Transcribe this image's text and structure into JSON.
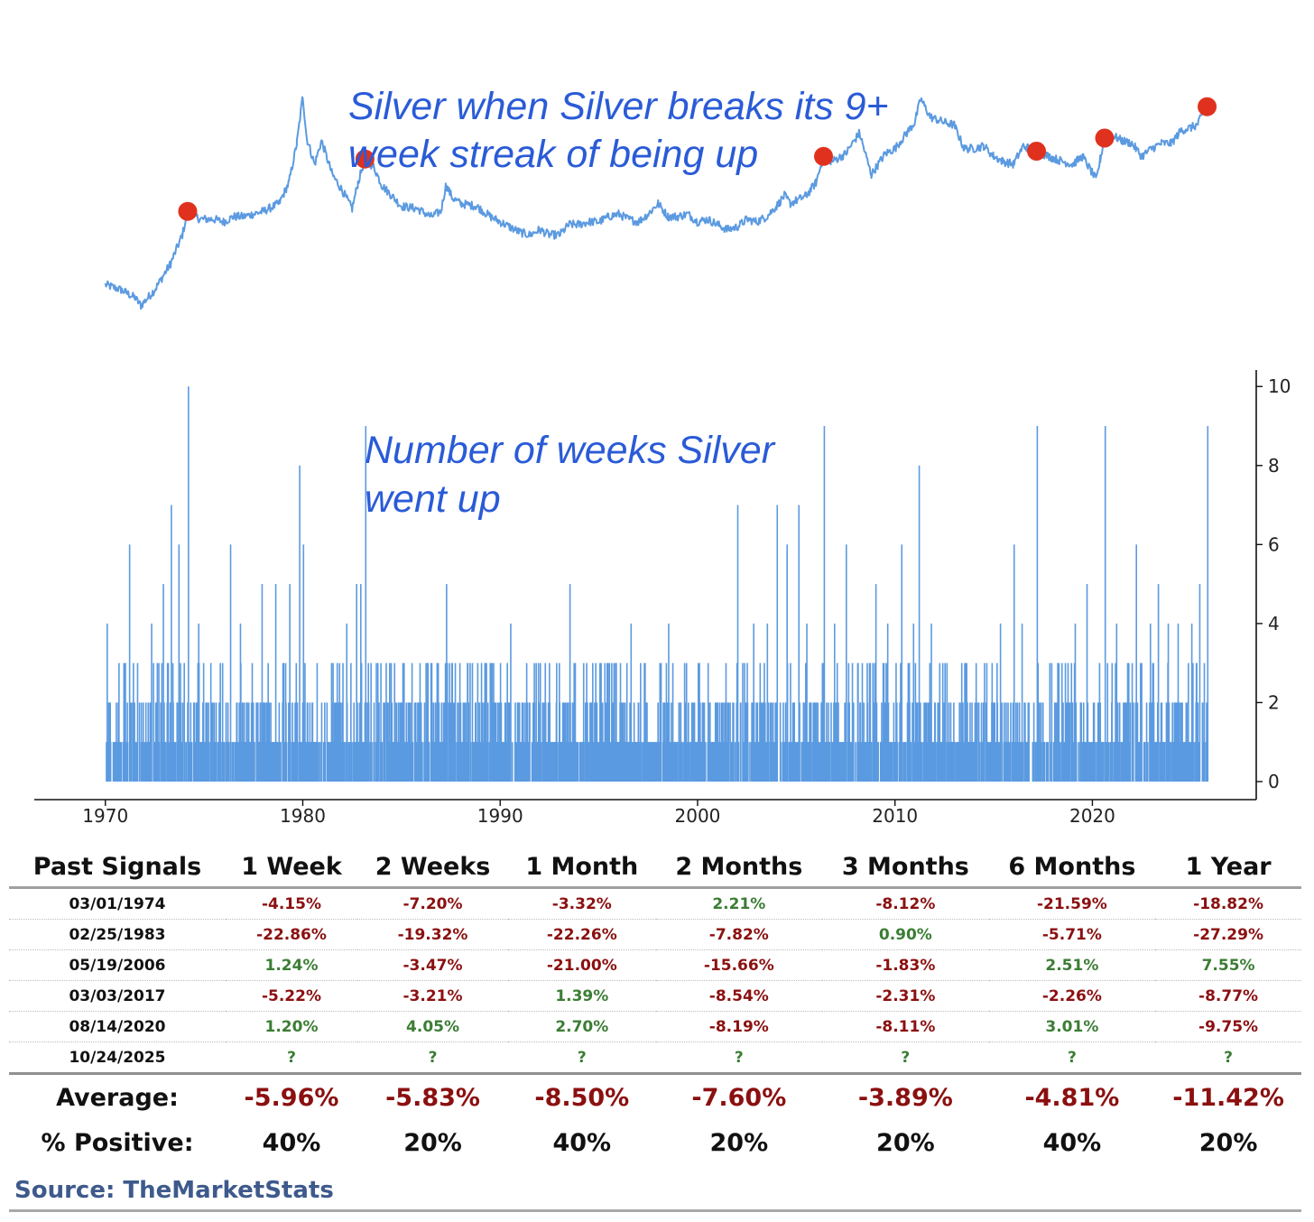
{
  "chart_data": [
    {
      "type": "line",
      "title": "Silver when Silver breaks its 9+ week streak of being up",
      "title_lines": [
        "Silver when Silver breaks its 9+",
        "week streak of being up"
      ],
      "series": [
        {
          "name": "Silver price (relative, log-style)",
          "points": [
            [
              1970.0,
              24
            ],
            [
              1970.8,
              22
            ],
            [
              1971.5,
              19
            ],
            [
              1971.8,
              16
            ],
            [
              1972.5,
              22
            ],
            [
              1973.3,
              32
            ],
            [
              1973.9,
              43
            ],
            [
              1974.17,
              52
            ],
            [
              1974.8,
              49
            ],
            [
              1975.5,
              49
            ],
            [
              1976.0,
              48
            ],
            [
              1976.5,
              50
            ],
            [
              1977.0,
              50
            ],
            [
              1977.5,
              51
            ],
            [
              1978.0,
              52
            ],
            [
              1978.8,
              55
            ],
            [
              1979.3,
              63
            ],
            [
              1979.7,
              78
            ],
            [
              1980.0,
              96
            ],
            [
              1980.2,
              80
            ],
            [
              1980.6,
              70
            ],
            [
              1980.95,
              79
            ],
            [
              1981.5,
              66
            ],
            [
              1982.0,
              60
            ],
            [
              1982.5,
              53
            ],
            [
              1982.8,
              63
            ],
            [
              1983.15,
              72
            ],
            [
              1983.6,
              69
            ],
            [
              1984.0,
              62
            ],
            [
              1984.5,
              58
            ],
            [
              1985.0,
              54
            ],
            [
              1985.8,
              53
            ],
            [
              1986.5,
              50
            ],
            [
              1987.0,
              52
            ],
            [
              1987.25,
              62
            ],
            [
              1987.6,
              57
            ],
            [
              1988.0,
              55
            ],
            [
              1988.8,
              54
            ],
            [
              1989.5,
              50
            ],
            [
              1990.0,
              48
            ],
            [
              1990.5,
              46
            ],
            [
              1991.0,
              44
            ],
            [
              1991.5,
              43
            ],
            [
              1992.0,
              45
            ],
            [
              1992.5,
              43
            ],
            [
              1993.0,
              43
            ],
            [
              1993.5,
              47
            ],
            [
              1994.0,
              47
            ],
            [
              1994.5,
              48
            ],
            [
              1995.0,
              48
            ],
            [
              1995.5,
              50
            ],
            [
              1996.0,
              51
            ],
            [
              1996.5,
              49
            ],
            [
              1997.0,
              48
            ],
            [
              1997.5,
              51
            ],
            [
              1998.0,
              55
            ],
            [
              1998.5,
              50
            ],
            [
              1999.0,
              50
            ],
            [
              1999.5,
              51
            ],
            [
              2000.0,
              48
            ],
            [
              2000.5,
              49
            ],
            [
              2001.0,
              47
            ],
            [
              2001.5,
              45
            ],
            [
              2002.0,
              46
            ],
            [
              2002.5,
              49
            ],
            [
              2003.0,
              48
            ],
            [
              2003.5,
              50
            ],
            [
              2004.0,
              54
            ],
            [
              2004.4,
              58
            ],
            [
              2004.7,
              55
            ],
            [
              2005.5,
              58
            ],
            [
              2006.0,
              63
            ],
            [
              2006.38,
              73
            ],
            [
              2006.8,
              71
            ],
            [
              2007.5,
              74
            ],
            [
              2008.2,
              82
            ],
            [
              2008.8,
              66
            ],
            [
              2009.5,
              74
            ],
            [
              2010.0,
              76
            ],
            [
              2010.6,
              82
            ],
            [
              2011.0,
              86
            ],
            [
              2011.3,
              95
            ],
            [
              2011.8,
              88
            ],
            [
              2012.5,
              86
            ],
            [
              2013.0,
              85
            ],
            [
              2013.5,
              76
            ],
            [
              2014.0,
              76
            ],
            [
              2014.5,
              77
            ],
            [
              2015.0,
              73
            ],
            [
              2015.5,
              71
            ],
            [
              2016.0,
              70
            ],
            [
              2016.5,
              77
            ],
            [
              2017.17,
              75
            ],
            [
              2017.8,
              73
            ],
            [
              2018.5,
              71
            ],
            [
              2019.0,
              70
            ],
            [
              2019.5,
              73
            ],
            [
              2020.2,
              64
            ],
            [
              2020.4,
              72
            ],
            [
              2020.62,
              80
            ],
            [
              2021.0,
              81
            ],
            [
              2021.5,
              79
            ],
            [
              2022.0,
              78
            ],
            [
              2022.5,
              73
            ],
            [
              2023.0,
              76
            ],
            [
              2023.5,
              78
            ],
            [
              2024.0,
              78
            ],
            [
              2024.5,
              83
            ],
            [
              2025.0,
              84
            ],
            [
              2025.3,
              85
            ],
            [
              2025.81,
              92
            ]
          ]
        }
      ],
      "signals": [
        {
          "date": "03/01/1974",
          "x": 1974.17
        },
        {
          "date": "02/25/1983",
          "x": 1983.15
        },
        {
          "date": "05/19/2006",
          "x": 2006.38
        },
        {
          "date": "03/03/2017",
          "x": 2017.17
        },
        {
          "date": "08/14/2020",
          "x": 2020.62
        },
        {
          "date": "10/24/2025",
          "x": 2025.81
        }
      ],
      "line_color": "#5b9ae0",
      "marker_color": "#e0311f"
    },
    {
      "type": "bar",
      "title": "Number of weeks Silver went up",
      "title_lines": [
        "Number of weeks Silver",
        "went up"
      ],
      "xlabel": "",
      "ylabel": "",
      "xlim": [
        1966.4,
        2028.3
      ],
      "ylim": [
        0,
        10.5
      ],
      "x_ticks": [
        1970,
        1980,
        1990,
        2000,
        2010,
        2020
      ],
      "x_tick_labels": [
        "1970",
        "1980",
        "1990",
        "2000",
        "2010",
        "2020"
      ],
      "y_ticks": [
        0,
        2,
        4,
        6,
        8,
        10
      ],
      "y_tick_labels": [
        "0",
        "2",
        "4",
        "6",
        "8",
        "10"
      ],
      "bar_color": "#5b9ae0",
      "streak_peaks": [
        [
          1970.05,
          4
        ],
        [
          1970.9,
          3
        ],
        [
          1971.2,
          6
        ],
        [
          1971.6,
          3
        ],
        [
          1972.3,
          4
        ],
        [
          1972.9,
          5
        ],
        [
          1973.3,
          7
        ],
        [
          1973.7,
          6
        ],
        [
          1974.17,
          10
        ],
        [
          1974.7,
          4
        ],
        [
          1975.3,
          3
        ],
        [
          1975.9,
          3
        ],
        [
          1976.3,
          6
        ],
        [
          1976.8,
          4
        ],
        [
          1977.4,
          3
        ],
        [
          1977.9,
          5
        ],
        [
          1978.6,
          5
        ],
        [
          1979.3,
          5
        ],
        [
          1979.8,
          8
        ],
        [
          1980.0,
          6
        ],
        [
          1980.7,
          3
        ],
        [
          1981.5,
          3
        ],
        [
          1982.2,
          4
        ],
        [
          1982.7,
          5
        ],
        [
          1982.9,
          5
        ],
        [
          1983.15,
          9
        ],
        [
          1984.2,
          3
        ],
        [
          1985.5,
          3
        ],
        [
          1986.5,
          3
        ],
        [
          1987.25,
          5
        ],
        [
          1988.3,
          3
        ],
        [
          1989.5,
          3
        ],
        [
          1990.5,
          4
        ],
        [
          1991.3,
          3
        ],
        [
          1992.0,
          3
        ],
        [
          1993.5,
          5
        ],
        [
          1994.2,
          3
        ],
        [
          1995.5,
          3
        ],
        [
          1996.6,
          4
        ],
        [
          1997.3,
          3
        ],
        [
          1998.5,
          4
        ],
        [
          1999.4,
          3
        ],
        [
          2000.5,
          3
        ],
        [
          2001.4,
          3
        ],
        [
          2002.0,
          7
        ],
        [
          2002.8,
          4
        ],
        [
          2003.5,
          4
        ],
        [
          2004.0,
          7
        ],
        [
          2004.5,
          6
        ],
        [
          2005.1,
          7
        ],
        [
          2005.5,
          4
        ],
        [
          2006.38,
          9
        ],
        [
          2006.9,
          4
        ],
        [
          2007.5,
          6
        ],
        [
          2008.3,
          3
        ],
        [
          2009.0,
          5
        ],
        [
          2009.6,
          4
        ],
        [
          2010.3,
          6
        ],
        [
          2010.9,
          4
        ],
        [
          2011.2,
          8
        ],
        [
          2011.8,
          4
        ],
        [
          2012.5,
          3
        ],
        [
          2013.6,
          3
        ],
        [
          2014.5,
          3
        ],
        [
          2015.3,
          4
        ],
        [
          2016.0,
          6
        ],
        [
          2016.4,
          4
        ],
        [
          2017.17,
          9
        ],
        [
          2017.8,
          3
        ],
        [
          2018.6,
          3
        ],
        [
          2019.1,
          4
        ],
        [
          2019.7,
          5
        ],
        [
          2020.62,
          9
        ],
        [
          2021.2,
          4
        ],
        [
          2021.8,
          3
        ],
        [
          2022.2,
          6
        ],
        [
          2022.9,
          4
        ],
        [
          2023.3,
          5
        ],
        [
          2023.8,
          4
        ],
        [
          2024.3,
          4
        ],
        [
          2025.0,
          4
        ],
        [
          2025.4,
          5
        ],
        [
          2025.81,
          9
        ]
      ]
    }
  ],
  "table": {
    "headers": [
      "Past Signals",
      "1 Week",
      "2 Weeks",
      "1 Month",
      "2 Months",
      "3 Months",
      "6 Months",
      "1 Year"
    ],
    "rows": [
      {
        "date": "03/01/1974",
        "values": [
          "-4.15%",
          "-7.20%",
          "-3.32%",
          "2.21%",
          "-8.12%",
          "-21.59%",
          "-18.82%"
        ]
      },
      {
        "date": "02/25/1983",
        "values": [
          "-22.86%",
          "-19.32%",
          "-22.26%",
          "-7.82%",
          "0.90%",
          "-5.71%",
          "-27.29%"
        ]
      },
      {
        "date": "05/19/2006",
        "values": [
          "1.24%",
          "-3.47%",
          "-21.00%",
          "-15.66%",
          "-1.83%",
          "2.51%",
          "7.55%"
        ]
      },
      {
        "date": "03/03/2017",
        "values": [
          "-5.22%",
          "-3.21%",
          "1.39%",
          "-8.54%",
          "-2.31%",
          "-2.26%",
          "-8.77%"
        ]
      },
      {
        "date": "08/14/2020",
        "values": [
          "1.20%",
          "4.05%",
          "2.70%",
          "-8.19%",
          "-8.11%",
          "3.01%",
          "-9.75%"
        ]
      },
      {
        "date": "10/24/2025",
        "values": [
          "?",
          "?",
          "?",
          "?",
          "?",
          "?",
          "?"
        ]
      }
    ],
    "average_label": "Average:",
    "average": [
      "-5.96%",
      "-5.83%",
      "-8.50%",
      "-7.60%",
      "-3.89%",
      "-4.81%",
      "-11.42%"
    ],
    "positive_label": "% Positive:",
    "positive": [
      "40%",
      "20%",
      "40%",
      "20%",
      "20%",
      "40%",
      "20%"
    ]
  },
  "source": "Source: TheMarketStats",
  "colors": {
    "negative": "#8b1010",
    "positive": "#3b7d34",
    "unknown": "#3b7d34",
    "title": "#2a5bd7",
    "source": "#3e5a8c"
  }
}
